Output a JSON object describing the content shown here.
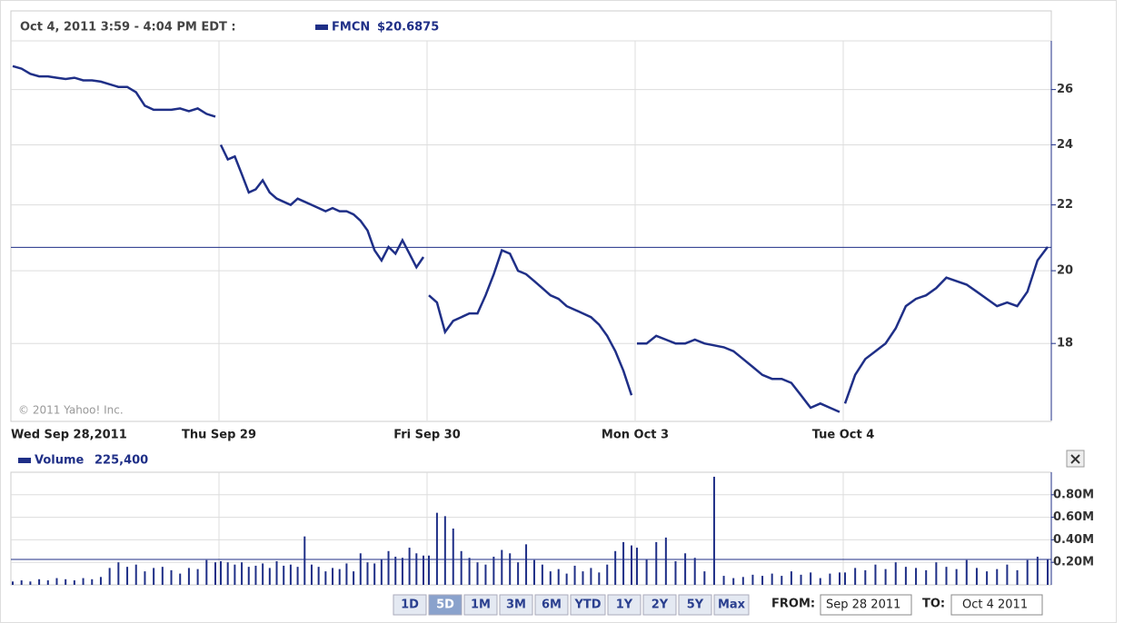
{
  "chart_data": [
    {
      "type": "line",
      "title": "Oct 4, 2011 3:59 - 4:04 PM EDT :",
      "copyright": "© 2011 Yahoo! Inc.",
      "log_scale": true,
      "grid": true,
      "categories": [
        "Wed Sep 28,2011",
        "Thu Sep 29",
        "Fri Sep 30",
        "Mon Oct 3",
        "Tue Oct 4"
      ],
      "ylim": [
        16.1,
        27.9
      ],
      "yticks": [
        18,
        20,
        22,
        24,
        26
      ],
      "series": [
        {
          "name": "FMCN",
          "color": "#1f2f87",
          "value_label": "$20.6875",
          "last": 20.6875,
          "values": [
            [
              26.9,
              26.8,
              26.6,
              26.5,
              26.5,
              26.45,
              26.4,
              26.45,
              26.35,
              26.35,
              26.3,
              26.2,
              26.1,
              26.1,
              25.9,
              25.4,
              25.25,
              25.25,
              25.25,
              25.3,
              25.2,
              25.3,
              25.1,
              25.0
            ],
            [
              24.0,
              23.5,
              23.6,
              23.0,
              22.4,
              22.5,
              22.8,
              22.4,
              22.2,
              22.1,
              22.0,
              22.2,
              22.1,
              22.0,
              21.9,
              21.8,
              21.9,
              21.8,
              21.8,
              21.7,
              21.5,
              21.2,
              20.6,
              20.3,
              20.7,
              20.5,
              20.9,
              20.5,
              20.1,
              20.4
            ],
            [
              19.3,
              19.1,
              18.3,
              18.6,
              18.7,
              18.8,
              18.8,
              19.3,
              19.9,
              20.6,
              20.5,
              20.0,
              19.9,
              19.7,
              19.5,
              19.3,
              19.2,
              19.0,
              18.9,
              18.8,
              18.7,
              18.5,
              18.2,
              17.8,
              17.3,
              16.7
            ],
            [
              18.0,
              18.0,
              18.2,
              18.1,
              18.0,
              18.0,
              18.1,
              18.0,
              17.95,
              17.9,
              17.8,
              17.6,
              17.4,
              17.2,
              17.1,
              17.1,
              17.0,
              16.7,
              16.4,
              16.5,
              16.4,
              16.3
            ],
            [
              16.5,
              17.2,
              17.6,
              17.8,
              18.0,
              18.4,
              19.0,
              19.2,
              19.3,
              19.5,
              19.8,
              19.7,
              19.6,
              19.4,
              19.2,
              19.0,
              19.1,
              19.0,
              19.4,
              20.3,
              20.7
            ]
          ]
        }
      ]
    },
    {
      "type": "bar",
      "ylim": [
        0,
        1000000
      ],
      "yticks": [
        {
          "value": 200000,
          "label": "0.20M"
        },
        {
          "value": 400000,
          "label": "0.40M"
        },
        {
          "value": 600000,
          "label": "0.60M"
        },
        {
          "value": 800000,
          "label": "0.80M"
        }
      ],
      "series": [
        {
          "name": "Volume",
          "color": "#1f2f87",
          "value_label": "225,400",
          "last": 225400,
          "values": [
            [
              30000,
              40000,
              30000,
              50000,
              40000,
              60000,
              50000,
              40000,
              60000,
              50000,
              70000,
              150000,
              200000,
              160000,
              180000,
              120000,
              150000,
              160000,
              130000,
              100000,
              150000,
              140000,
              220000,
              200000
            ],
            [
              210000,
              200000,
              180000,
              200000,
              160000,
              170000,
              190000,
              150000,
              210000,
              170000,
              180000,
              160000,
              430000,
              180000,
              160000,
              120000,
              150000,
              140000,
              190000,
              120000,
              280000,
              200000,
              190000,
              230000,
              300000,
              250000,
              240000,
              330000,
              280000,
              260000
            ],
            [
              260000,
              640000,
              610000,
              500000,
              300000,
              240000,
              200000,
              180000,
              250000,
              310000,
              280000,
              200000,
              360000,
              220000,
              180000,
              120000,
              140000,
              100000,
              170000,
              120000,
              150000,
              110000,
              180000,
              300000,
              380000,
              350000
            ],
            [
              330000,
              230000,
              380000,
              420000,
              210000,
              280000,
              240000,
              120000,
              960000,
              80000,
              60000,
              70000,
              90000,
              80000,
              100000,
              80000,
              120000,
              90000,
              110000,
              60000,
              100000,
              110000
            ],
            [
              110000,
              150000,
              130000,
              180000,
              140000,
              200000,
              160000,
              150000,
              130000,
              200000,
              160000,
              140000,
              220000,
              150000,
              120000,
              140000,
              180000,
              130000,
              220000,
              250000,
              230000
            ]
          ]
        }
      ]
    }
  ],
  "controls": {
    "ranges": [
      "1D",
      "5D",
      "1M",
      "3M",
      "6M",
      "YTD",
      "1Y",
      "2Y",
      "5Y",
      "Max"
    ],
    "selected": "5D",
    "from_label": "FROM:",
    "from": "Sep 28 2011",
    "to_label": "TO:",
    "to": "Oct 4 2011"
  }
}
